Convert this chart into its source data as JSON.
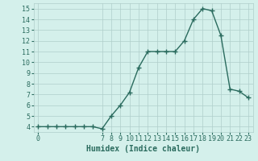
{
  "xlabel": "Humidex (Indice chaleur)",
  "ylabel": "",
  "x": [
    0,
    1,
    2,
    3,
    4,
    5,
    6,
    7,
    8,
    9,
    10,
    11,
    12,
    13,
    14,
    15,
    16,
    17,
    18,
    19,
    20,
    21,
    22,
    23
  ],
  "y": [
    4,
    4,
    4,
    4,
    4,
    4,
    4,
    3.8,
    5,
    6,
    7.2,
    9.5,
    11,
    11,
    11,
    11,
    12,
    14,
    15,
    14.8,
    12.5,
    7.5,
    7.3,
    6.7
  ],
  "line_color": "#2a6b5e",
  "marker": "+",
  "marker_size": 4,
  "line_width": 1.0,
  "bg_color": "#d4f0eb",
  "grid_color": "#b0ceca",
  "tick_color": "#2a6b5e",
  "label_color": "#2a6b5e",
  "xlim": [
    -0.5,
    23.5
  ],
  "ylim": [
    3.5,
    15.5
  ],
  "yticks": [
    4,
    5,
    6,
    7,
    8,
    9,
    10,
    11,
    12,
    13,
    14,
    15
  ],
  "xtick_positions": [
    0,
    7,
    8,
    9,
    10,
    11,
    12,
    13,
    14,
    15,
    16,
    17,
    18,
    19,
    20,
    21,
    22,
    23
  ],
  "xtick_labels": [
    "0",
    "7",
    "8",
    "9",
    "10",
    "11",
    "12",
    "13",
    "14",
    "15",
    "16",
    "17",
    "18",
    "19",
    "20",
    "21",
    "22",
    "23"
  ],
  "xlabel_fontsize": 7,
  "tick_fontsize": 6
}
